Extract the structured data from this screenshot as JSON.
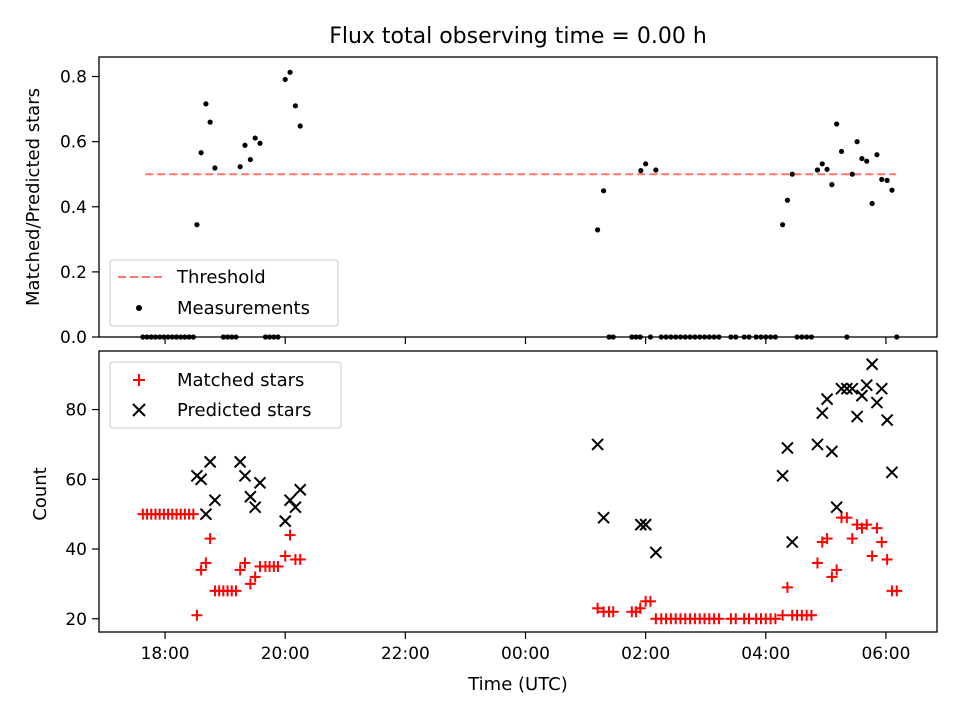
{
  "figure_title": "Flux total observing time = 0.00 h",
  "colors": {
    "threshold": "#ff7373",
    "measurements": "#000000",
    "matched": "#ff0000",
    "predicted": "#000000",
    "axes": "#000000"
  },
  "chart_data": [
    {
      "type": "scatter",
      "title": "Flux total observing time = 0.00 h",
      "xlabel": "",
      "ylabel": "Matched/Predicted stars",
      "x_unit": "hours since 00:00 UTC",
      "xlim": [
        -7.1,
        6.85
      ],
      "ylim": [
        0,
        0.86
      ],
      "yticks": [
        0,
        0.2,
        0.4,
        0.6,
        0.8
      ],
      "ytick_labels": [
        "0.0",
        "0.2",
        "0.4",
        "0.6",
        "0.8"
      ],
      "xticks": [
        -6,
        -4,
        -2,
        0,
        2,
        4,
        6
      ],
      "legend_position": "lower-left",
      "threshold": {
        "name": "Threshold",
        "style": "dashed",
        "x": [
          -6.33,
          6.17
        ],
        "y": 0.5
      },
      "series": [
        {
          "name": "Measurements",
          "marker": "dot",
          "points": [
            [
              -6.37,
              0
            ],
            [
              -6.3,
              0
            ],
            [
              -6.23,
              0
            ],
            [
              -6.16,
              0
            ],
            [
              -6.09,
              0
            ],
            [
              -6.02,
              0
            ],
            [
              -5.95,
              0
            ],
            [
              -5.88,
              0
            ],
            [
              -5.81,
              0
            ],
            [
              -5.74,
              0
            ],
            [
              -5.67,
              0
            ],
            [
              -5.6,
              0
            ],
            [
              -5.53,
              0
            ],
            [
              -5.47,
              0.345
            ],
            [
              -5.4,
              0.566
            ],
            [
              -5.32,
              0.716
            ],
            [
              -5.25,
              0.66
            ],
            [
              -5.17,
              0.519
            ],
            [
              -5.03,
              0
            ],
            [
              -4.96,
              0
            ],
            [
              -4.89,
              0
            ],
            [
              -4.82,
              0
            ],
            [
              -4.75,
              0.523
            ],
            [
              -4.67,
              0.589
            ],
            [
              -4.58,
              0.545
            ],
            [
              -4.5,
              0.611
            ],
            [
              -4.42,
              0.595
            ],
            [
              -4.33,
              0
            ],
            [
              -4.26,
              0
            ],
            [
              -4.19,
              0
            ],
            [
              -4.12,
              0
            ],
            [
              -4.0,
              0.791
            ],
            [
              -3.92,
              0.813
            ],
            [
              -3.83,
              0.71
            ],
            [
              -3.75,
              0.648
            ],
            [
              1.2,
              0.329
            ],
            [
              1.3,
              0.449
            ],
            [
              1.39,
              0
            ],
            [
              1.46,
              0
            ],
            [
              1.77,
              0
            ],
            [
              1.84,
              0
            ],
            [
              1.91,
              0
            ],
            [
              1.92,
              0.511
            ],
            [
              2.0,
              0.532
            ],
            [
              2.17,
              0.513
            ],
            [
              2.08,
              0
            ],
            [
              2.26,
              0
            ],
            [
              2.34,
              0
            ],
            [
              2.42,
              0
            ],
            [
              2.5,
              0
            ],
            [
              2.58,
              0
            ],
            [
              2.66,
              0
            ],
            [
              2.74,
              0
            ],
            [
              2.82,
              0
            ],
            [
              2.9,
              0
            ],
            [
              2.98,
              0
            ],
            [
              3.06,
              0
            ],
            [
              3.14,
              0
            ],
            [
              3.22,
              0
            ],
            [
              3.42,
              0
            ],
            [
              3.5,
              0
            ],
            [
              3.64,
              0
            ],
            [
              3.72,
              0
            ],
            [
              3.84,
              0
            ],
            [
              3.92,
              0
            ],
            [
              4.0,
              0
            ],
            [
              4.08,
              0
            ],
            [
              4.16,
              0
            ],
            [
              4.28,
              0.345
            ],
            [
              4.36,
              0.42
            ],
            [
              4.44,
              0.5
            ],
            [
              4.52,
              0
            ],
            [
              4.6,
              0
            ],
            [
              4.68,
              0
            ],
            [
              4.76,
              0
            ],
            [
              4.86,
              0.513
            ],
            [
              4.94,
              0.532
            ],
            [
              5.02,
              0.515
            ],
            [
              5.1,
              0.468
            ],
            [
              5.18,
              0.654
            ],
            [
              5.26,
              0.57
            ],
            [
              5.35,
              0
            ],
            [
              5.44,
              0.5
            ],
            [
              5.52,
              0.6
            ],
            [
              5.6,
              0.548
            ],
            [
              5.68,
              0.54
            ],
            [
              5.77,
              0.41
            ],
            [
              5.85,
              0.56
            ],
            [
              5.93,
              0.484
            ],
            [
              6.02,
              0.481
            ],
            [
              6.1,
              0.451
            ],
            [
              6.18,
              0
            ]
          ]
        }
      ]
    },
    {
      "type": "scatter",
      "title": "",
      "xlabel": "Time (UTC)",
      "ylabel": "Count",
      "x_unit": "hours since 00:00 UTC",
      "xlim": [
        -7.1,
        6.85
      ],
      "ylim": [
        16.2,
        96.8
      ],
      "yticks": [
        20,
        40,
        60,
        80
      ],
      "ytick_labels": [
        "20",
        "40",
        "60",
        "80"
      ],
      "xticks": [
        -6,
        -4,
        -2,
        0,
        2,
        4,
        6
      ],
      "xtick_labels": [
        "18:00",
        "20:00",
        "22:00",
        "00:00",
        "02:00",
        "04:00",
        "06:00"
      ],
      "legend_position": "top-left",
      "series": [
        {
          "name": "Matched stars",
          "marker": "plus",
          "points": [
            [
              -6.37,
              50
            ],
            [
              -6.3,
              50
            ],
            [
              -6.23,
              50
            ],
            [
              -6.16,
              50
            ],
            [
              -6.09,
              50
            ],
            [
              -6.02,
              50
            ],
            [
              -5.95,
              50
            ],
            [
              -5.88,
              50
            ],
            [
              -5.81,
              50
            ],
            [
              -5.74,
              50
            ],
            [
              -5.67,
              50
            ],
            [
              -5.6,
              50
            ],
            [
              -5.53,
              50
            ],
            [
              -5.47,
              21
            ],
            [
              -5.4,
              34
            ],
            [
              -5.32,
              36
            ],
            [
              -5.25,
              43
            ],
            [
              -5.17,
              28
            ],
            [
              -5.1,
              28
            ],
            [
              -5.03,
              28
            ],
            [
              -4.96,
              28
            ],
            [
              -4.89,
              28
            ],
            [
              -4.82,
              28
            ],
            [
              -4.75,
              34
            ],
            [
              -4.67,
              36
            ],
            [
              -4.58,
              30
            ],
            [
              -4.5,
              32
            ],
            [
              -4.42,
              35
            ],
            [
              -4.33,
              35
            ],
            [
              -4.26,
              35
            ],
            [
              -4.19,
              35
            ],
            [
              -4.12,
              35
            ],
            [
              -4.0,
              38
            ],
            [
              -3.92,
              44
            ],
            [
              -3.83,
              37
            ],
            [
              -3.75,
              37
            ],
            [
              1.2,
              23
            ],
            [
              1.3,
              22
            ],
            [
              1.39,
              22
            ],
            [
              1.46,
              22
            ],
            [
              1.77,
              22
            ],
            [
              1.84,
              22
            ],
            [
              1.91,
              23
            ],
            [
              2.0,
              25
            ],
            [
              2.08,
              25
            ],
            [
              2.17,
              20
            ],
            [
              2.26,
              20
            ],
            [
              2.34,
              20
            ],
            [
              2.42,
              20
            ],
            [
              2.5,
              20
            ],
            [
              2.58,
              20
            ],
            [
              2.66,
              20
            ],
            [
              2.74,
              20
            ],
            [
              2.82,
              20
            ],
            [
              2.9,
              20
            ],
            [
              2.98,
              20
            ],
            [
              3.06,
              20
            ],
            [
              3.14,
              20
            ],
            [
              3.22,
              20
            ],
            [
              3.42,
              20
            ],
            [
              3.5,
              20
            ],
            [
              3.64,
              20
            ],
            [
              3.72,
              20
            ],
            [
              3.84,
              20
            ],
            [
              3.92,
              20
            ],
            [
              4.0,
              20
            ],
            [
              4.08,
              20
            ],
            [
              4.16,
              20
            ],
            [
              4.28,
              21
            ],
            [
              4.36,
              29
            ],
            [
              4.44,
              21
            ],
            [
              4.52,
              21
            ],
            [
              4.6,
              21
            ],
            [
              4.68,
              21
            ],
            [
              4.76,
              21
            ],
            [
              4.86,
              36
            ],
            [
              4.94,
              42
            ],
            [
              5.02,
              43
            ],
            [
              5.1,
              32
            ],
            [
              5.18,
              34
            ],
            [
              5.26,
              49
            ],
            [
              5.35,
              49
            ],
            [
              5.44,
              43
            ],
            [
              5.52,
              47
            ],
            [
              5.6,
              46
            ],
            [
              5.68,
              47
            ],
            [
              5.77,
              38
            ],
            [
              5.85,
              46
            ],
            [
              5.93,
              42
            ],
            [
              6.02,
              37
            ],
            [
              6.1,
              28
            ],
            [
              6.18,
              28
            ]
          ]
        },
        {
          "name": "Predicted stars",
          "marker": "cross",
          "points": [
            [
              -5.47,
              61
            ],
            [
              -5.4,
              60
            ],
            [
              -5.32,
              50
            ],
            [
              -5.25,
              65
            ],
            [
              -5.17,
              54
            ],
            [
              -4.75,
              65
            ],
            [
              -4.67,
              61
            ],
            [
              -4.58,
              55
            ],
            [
              -4.5,
              52
            ],
            [
              -4.42,
              59
            ],
            [
              -4.0,
              48
            ],
            [
              -3.92,
              54
            ],
            [
              -3.83,
              52
            ],
            [
              -3.75,
              57
            ],
            [
              1.2,
              70
            ],
            [
              1.3,
              49
            ],
            [
              1.92,
              47
            ],
            [
              2.0,
              47
            ],
            [
              2.17,
              39
            ],
            [
              4.28,
              61
            ],
            [
              4.36,
              69
            ],
            [
              4.44,
              42
            ],
            [
              4.86,
              70
            ],
            [
              4.94,
              79
            ],
            [
              5.02,
              83
            ],
            [
              5.1,
              68
            ],
            [
              5.18,
              52
            ],
            [
              5.26,
              86
            ],
            [
              5.35,
              86
            ],
            [
              5.44,
              86
            ],
            [
              5.52,
              78
            ],
            [
              5.6,
              84
            ],
            [
              5.68,
              87
            ],
            [
              5.77,
              93
            ],
            [
              5.85,
              82
            ],
            [
              5.93,
              86
            ],
            [
              6.02,
              77
            ],
            [
              6.1,
              62
            ]
          ]
        }
      ]
    }
  ]
}
